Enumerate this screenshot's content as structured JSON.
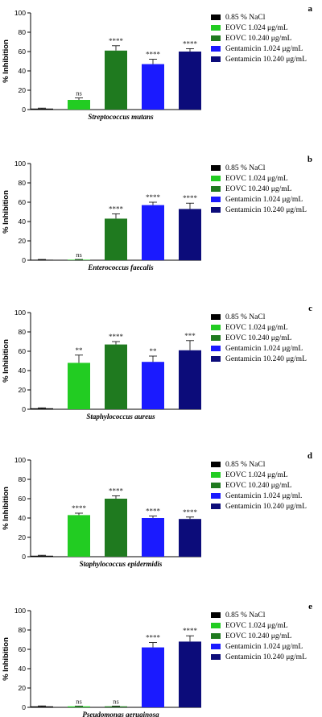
{
  "colors": {
    "nacl": "#000000",
    "eovc_low": "#22cc22",
    "eovc_high": "#1f7a1f",
    "gent_low": "#1a1aff",
    "gent_high": "#0c0c7a"
  },
  "chart_data": [
    {
      "type": "bar",
      "panel_label": "a",
      "title": "Streptococcus mutans",
      "ylabel": "% Inhibition",
      "ylim": [
        0,
        100
      ],
      "yticks": [
        "0",
        "20",
        "40",
        "60",
        "80",
        "100"
      ],
      "legend": [
        "0.85 % NaCl",
        "EOVC 1.024 μg/mL",
        "EOVC 10.240 μg/mL",
        "Gentamicin 1.024 μg/mL",
        "Gentamicin 10.240 μg/mL"
      ],
      "legend_position": "right",
      "values": [
        1,
        10,
        61,
        47,
        60
      ],
      "errors": [
        0.5,
        2,
        5,
        5,
        3
      ],
      "significance": [
        "",
        "ns",
        "****",
        "****",
        "****"
      ]
    },
    {
      "type": "bar",
      "panel_label": "b",
      "title": "Enterococcus faecalis",
      "ylabel": "% Inhibition",
      "ylim": [
        0,
        100
      ],
      "yticks": [
        "0",
        "20",
        "40",
        "60",
        "80",
        "100"
      ],
      "legend": [
        "0.85 % NaCl",
        "EOVC 1.024 μg/mL",
        "EOVC 10.240 μg/mL",
        "Gentamicin 1.024 μg/mL",
        "Gentamicin 10.240 μg/mL"
      ],
      "legend_position": "right",
      "values": [
        0.5,
        0.5,
        43,
        57,
        53
      ],
      "errors": [
        0.3,
        0.3,
        5,
        3,
        6
      ],
      "significance": [
        "",
        "ns",
        "****",
        "****",
        "****"
      ]
    },
    {
      "type": "bar",
      "panel_label": "c",
      "title": "Staphylococcus aureus",
      "ylabel": "% Inhibition",
      "ylim": [
        0,
        100
      ],
      "yticks": [
        "0",
        "20",
        "40",
        "60",
        "80",
        "100"
      ],
      "legend": [
        "0.85 % NaCl",
        "EOVC 1.024 μg/mL",
        "EOVC 10.240 μg/mL",
        "Gentamicin 1.024 μg/mL",
        "Gentamicin 10.240 μg/mL"
      ],
      "legend_position": "right",
      "values": [
        1,
        48,
        67,
        49,
        61
      ],
      "errors": [
        0.5,
        8,
        3,
        6,
        10
      ],
      "significance": [
        "",
        "**",
        "****",
        "**",
        "***"
      ]
    },
    {
      "type": "bar",
      "panel_label": "d",
      "title": "Staphylococcus epidermidis",
      "ylabel": "% Inhibition",
      "ylim": [
        0,
        100
      ],
      "yticks": [
        "0",
        "20",
        "40",
        "60",
        "80",
        "100"
      ],
      "legend": [
        "0.85 % NaCl",
        "EOVC 1.024 μg/mL",
        "EOVC 10.240 μg/mL",
        "Gentamicin 1.024 μg/ml.",
        "Gentamicin 10.240 μg/mL"
      ],
      "legend_position": "right",
      "values": [
        1,
        43,
        60,
        40,
        39
      ],
      "errors": [
        0.5,
        2,
        3,
        2,
        2
      ],
      "significance": [
        "",
        "****",
        "****",
        "****",
        "****"
      ]
    },
    {
      "type": "bar",
      "panel_label": "e",
      "title": "Pseudomonas aeruginosa",
      "ylabel": "% Inhibition",
      "ylim": [
        0,
        100
      ],
      "yticks": [
        "0",
        "20",
        "40",
        "60",
        "80",
        "100"
      ],
      "legend": [
        "0.85 % NaCl",
        "EOVC 1.024 μg/mL",
        "EOVC 10.240 μg/mL",
        "Gentamicin 1.024 μg/mL",
        "Gentamicin 10.240 μg/mL"
      ],
      "legend_position": "right",
      "values": [
        1,
        1,
        1,
        62,
        68
      ],
      "errors": [
        0.5,
        0.3,
        0.3,
        5,
        6
      ],
      "significance": [
        "",
        "ns",
        "ns",
        "****",
        "****"
      ]
    }
  ]
}
